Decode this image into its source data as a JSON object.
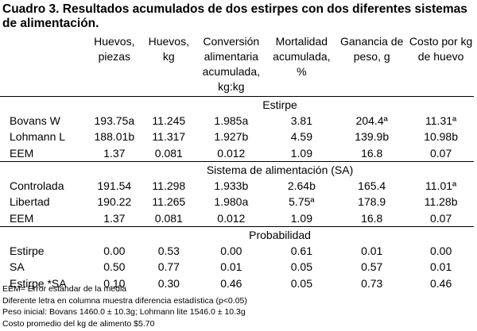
{
  "title": "Cuadro 3. Resultados acumulados de dos estirpes con dos diferentes sistemas de alimentación.",
  "headers": [
    "",
    "Huevos, piezas",
    "Huevos, kg",
    "Conversión alimentaria acumulada, kg:kg",
    "Mortalidad acumulada, %",
    "Ganancia de peso, g",
    "Costo por kg de huevo"
  ],
  "sections": [
    {
      "label": "Estirpe",
      "rows": [
        [
          "Bovans W",
          "193.75a",
          "11.245",
          "1.985a",
          "3.81",
          "204.4ª",
          "11.31ª"
        ],
        [
          "Lohmann L",
          "188.01b",
          "11.317",
          "1.927b",
          "4.59",
          "139.9b",
          "10.98b"
        ],
        [
          "EEM",
          "1.37",
          "0.081",
          "0.012",
          "1.09",
          "16.8",
          "0.07"
        ]
      ]
    },
    {
      "label": "Sistema de alimentación (SA)",
      "rows": [
        [
          "Controlada",
          "191.54",
          "11.298",
          "1.933b",
          "2.64b",
          "165.4",
          "11.01ª"
        ],
        [
          "Libertad",
          "190.22",
          "11.265",
          "1.980a",
          "5.75ª",
          "178.9",
          "11.28b"
        ],
        [
          "EEM",
          "1.37",
          "0.081",
          "0.012",
          "1.09",
          "16.8",
          "0.07"
        ]
      ]
    },
    {
      "label": "Probabilidad",
      "rows": [
        [
          "Estirpe",
          "0.00",
          "0.53",
          "0.00",
          "0.61",
          "0.01",
          "0.00"
        ],
        [
          "SA",
          "0.50",
          "0.77",
          "0.01",
          "0.05",
          "0.57",
          "0.01"
        ],
        [
          "Estirpe *SA",
          "0.10",
          "0.30",
          "0.46",
          "0.05",
          "0.73",
          "0.46"
        ]
      ]
    }
  ],
  "notes": [
    "EEM= Error estándar de la media",
    "Diferente letra en columna muestra diferencia estadística (p<0.05)",
    "Peso inicial: Bovans 1460.0 ± 10.3g; Lohmann lite 1546.0 ± 10.3g",
    "Costo promedio del  kg de alimento $5.70"
  ]
}
